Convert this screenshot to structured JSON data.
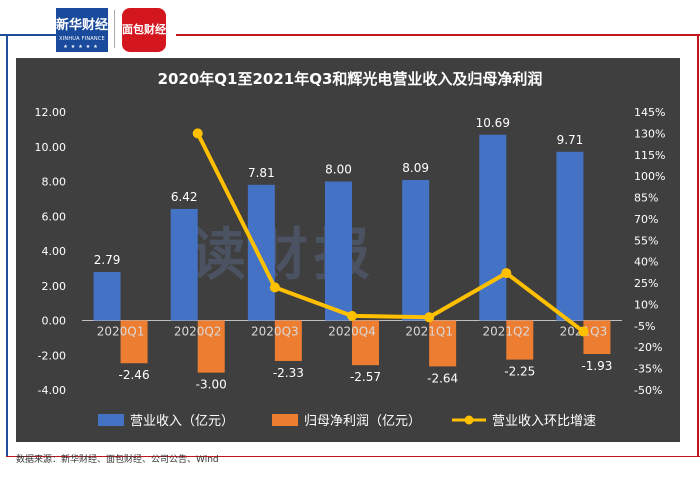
{
  "logos": {
    "xinhua_cn": "新华财经",
    "xinhua_en": "XINHUA FINANCE",
    "mianbao": "面包财经"
  },
  "watermark": "读财报",
  "source": "数据来源：新华财经、面包财经、公司公告、Wind",
  "chart_data": {
    "type": "bar",
    "title": "2020年Q1至2021年Q3和辉光电营业收入及归母净利润",
    "categories": [
      "2020Q1",
      "2020Q2",
      "2020Q3",
      "2020Q4",
      "2021Q1",
      "2021Q2",
      "2021Q3"
    ],
    "series": [
      {
        "name": "营业收入（亿元）",
        "type": "bar",
        "axis": "left",
        "color": "#4472c4",
        "values": [
          2.79,
          6.42,
          7.81,
          8.0,
          8.09,
          10.69,
          9.71
        ],
        "labels": [
          "2.79",
          "6.42",
          "7.81",
          "8.00",
          "8.09",
          "10.69",
          "9.71"
        ]
      },
      {
        "name": "归母净利润（亿元）",
        "type": "bar",
        "axis": "left",
        "color": "#ed7d31",
        "values": [
          -2.46,
          -3.0,
          -2.33,
          -2.57,
          -2.64,
          -2.25,
          -1.93
        ],
        "labels": [
          "-2.46",
          "-3.00",
          "-2.33",
          "-2.57",
          "-2.64",
          "-2.25",
          "-1.93"
        ]
      },
      {
        "name": "营业收入环比增速",
        "type": "line",
        "axis": "right",
        "color": "#ffc000",
        "values": [
          null,
          130,
          22,
          2,
          1,
          32,
          -9
        ]
      }
    ],
    "left_axis": {
      "ylim": [
        -4,
        12
      ],
      "ticks": [
        "12.00",
        "10.00",
        "8.00",
        "6.00",
        "4.00",
        "2.00",
        "0.00",
        "-2.00",
        "-4.00"
      ]
    },
    "right_axis": {
      "ylim": [
        -50,
        145
      ],
      "ticks": [
        "145%",
        "130%",
        "115%",
        "100%",
        "85%",
        "70%",
        "55%",
        "40%",
        "25%",
        "10%",
        "-5%",
        "-20%",
        "-35%",
        "-50%"
      ]
    },
    "grid": false,
    "legend": "bottom"
  }
}
